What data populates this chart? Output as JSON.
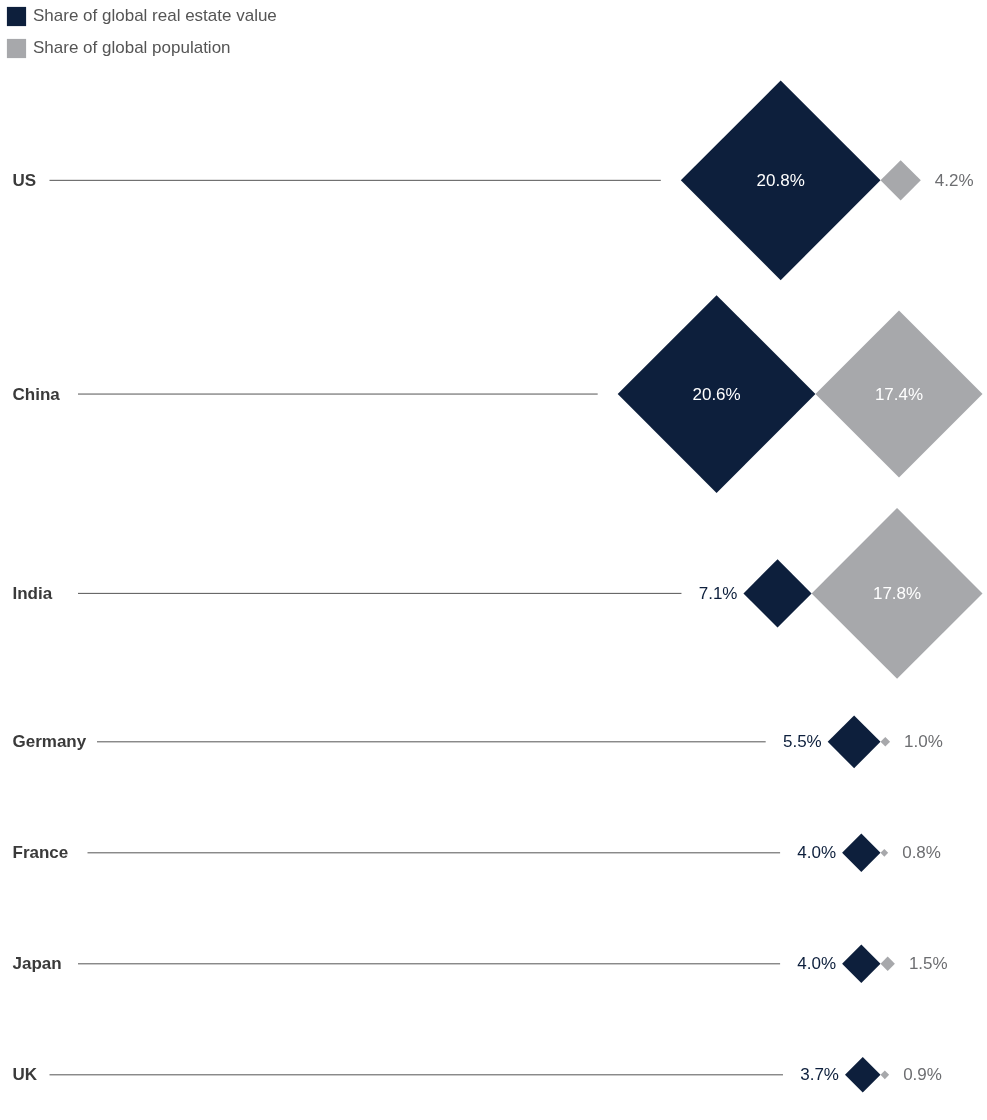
{
  "chart_data": {
    "type": "other",
    "legend": "top left",
    "categories": [
      "US",
      "China",
      "India",
      "Germany",
      "France",
      "Japan",
      "UK"
    ],
    "series": [
      {
        "name": "Share of global real estate value",
        "color": "#0d1f3c",
        "values": [
          20.8,
          20.6,
          7.1,
          5.5,
          4.0,
          4.0,
          3.7
        ],
        "value_labels": [
          "20.8%",
          "20.6%",
          "7.1%",
          "5.5%",
          "4.0%",
          "4.0%",
          "3.7%"
        ]
      },
      {
        "name": "Share of global population",
        "color": "#a7a8ab",
        "values": [
          4.2,
          17.4,
          17.8,
          1.0,
          0.8,
          1.5,
          0.9
        ],
        "value_labels": [
          "4.2%",
          "17.4%",
          "17.8%",
          "1.0%",
          "0.8%",
          "1.5%",
          "0.9%"
        ]
      }
    ]
  }
}
